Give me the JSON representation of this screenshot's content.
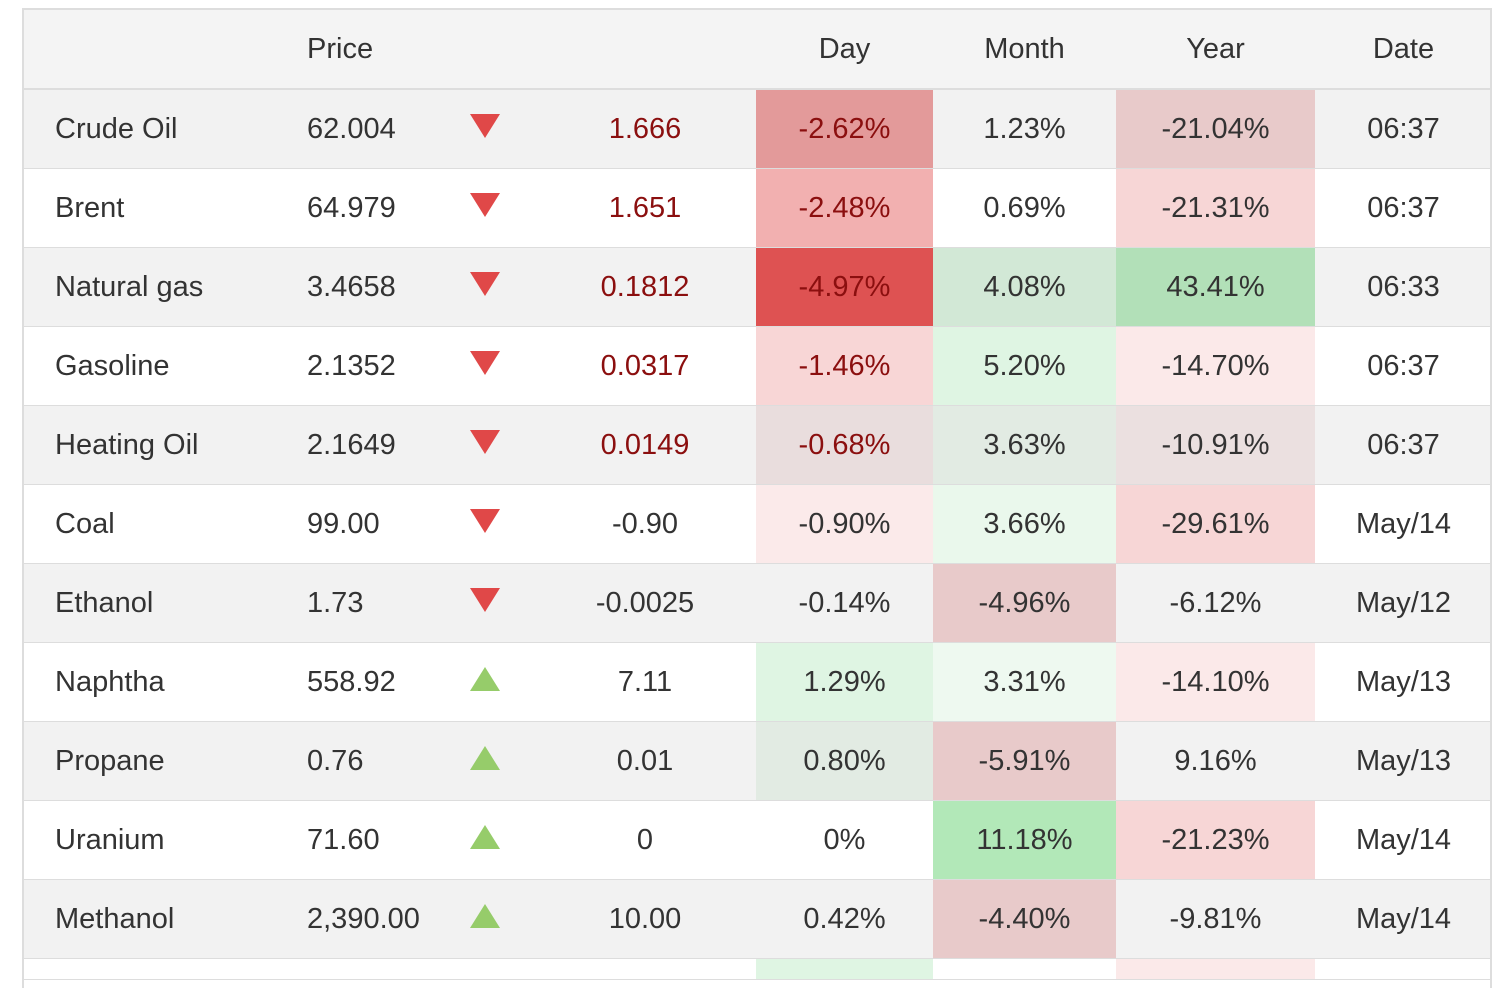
{
  "headers": {
    "name": "",
    "price": "Price",
    "arrow": "",
    "change": "",
    "day": "Day",
    "month": "Month",
    "year": "Year",
    "date": "Date"
  },
  "rows": [
    {
      "name": "Crude Oil",
      "price": "62.004",
      "direction": "down",
      "change": "1.666",
      "change_negative": true,
      "day": "-2.62%",
      "month": "1.23%",
      "year": "-21.04%",
      "date": "06:37",
      "day_bg": "#e39a9a",
      "month_bg": "",
      "year_bg": "#e8caca",
      "day_red_text": true
    },
    {
      "name": "Brent",
      "price": "64.979",
      "direction": "down",
      "change": "1.651",
      "change_negative": true,
      "day": "-2.48%",
      "month": "0.69%",
      "year": "-21.31%",
      "date": "06:37",
      "day_bg": "#f2b0b0",
      "month_bg": "",
      "year_bg": "#f7d6d6",
      "day_red_text": true
    },
    {
      "name": "Natural gas",
      "price": "3.4658",
      "direction": "down",
      "change": "0.1812",
      "change_negative": true,
      "day": "-4.97%",
      "month": "4.08%",
      "year": "43.41%",
      "date": "06:33",
      "day_bg": "#de5252",
      "month_bg": "#d2e8d6",
      "year_bg": "#b2e0b8",
      "day_red_text": true
    },
    {
      "name": "Gasoline",
      "price": "2.1352",
      "direction": "down",
      "change": "0.0317",
      "change_negative": true,
      "day": "-1.46%",
      "month": "5.20%",
      "year": "-14.70%",
      "date": "06:37",
      "day_bg": "#f8d6d6",
      "month_bg": "#dff5e3",
      "year_bg": "#fbe9e9",
      "day_red_text": true
    },
    {
      "name": "Heating Oil",
      "price": "2.1649",
      "direction": "down",
      "change": "0.0149",
      "change_negative": true,
      "day": "-0.68%",
      "month": "3.63%",
      "year": "-10.91%",
      "date": "06:37",
      "day_bg": "#e9dddd",
      "month_bg": "#e2ebe3",
      "year_bg": "#ebe0e0",
      "day_red_text": true
    },
    {
      "name": "Coal",
      "price": "99.00",
      "direction": "down",
      "change": "-0.90",
      "change_negative": false,
      "day": "-0.90%",
      "month": "3.66%",
      "year": "-29.61%",
      "date": "May/14",
      "day_bg": "#fbeaea",
      "month_bg": "#eaf8ec",
      "year_bg": "#f7d6d6",
      "day_red_text": false
    },
    {
      "name": "Ethanol",
      "price": "1.73",
      "direction": "down",
      "change": "-0.0025",
      "change_negative": false,
      "day": "-0.14%",
      "month": "-4.96%",
      "year": "-6.12%",
      "date": "May/12",
      "day_bg": "",
      "month_bg": "#e8caca",
      "year_bg": "",
      "day_red_text": false
    },
    {
      "name": "Naphtha",
      "price": "558.92",
      "direction": "up",
      "change": "7.11",
      "change_negative": false,
      "day": "1.29%",
      "month": "3.31%",
      "year": "-14.10%",
      "date": "May/13",
      "day_bg": "#dff5e3",
      "month_bg": "#eef9f0",
      "year_bg": "#fbe9e9",
      "day_red_text": false
    },
    {
      "name": "Propane",
      "price": "0.76",
      "direction": "up",
      "change": "0.01",
      "change_negative": false,
      "day": "0.80%",
      "month": "-5.91%",
      "year": "9.16%",
      "date": "May/13",
      "day_bg": "#e2ebe3",
      "month_bg": "#e8caca",
      "year_bg": "",
      "day_red_text": false
    },
    {
      "name": "Uranium",
      "price": "71.60",
      "direction": "up",
      "change": "0",
      "change_negative": false,
      "day": "0%",
      "month": "11.18%",
      "year": "-21.23%",
      "date": "May/14",
      "day_bg": "",
      "month_bg": "#b2e8b8",
      "year_bg": "#f7d6d6",
      "day_red_text": false
    },
    {
      "name": "Methanol",
      "price": "2,390.00",
      "direction": "up",
      "change": "10.00",
      "change_negative": false,
      "day": "0.42%",
      "month": "-4.40%",
      "year": "-9.81%",
      "date": "May/14",
      "day_bg": "",
      "month_bg": "#e8caca",
      "year_bg": "",
      "day_red_text": false
    }
  ],
  "partial_row": {
    "day_bg": "#dff5e3",
    "year_bg": "#fbe9e9"
  }
}
